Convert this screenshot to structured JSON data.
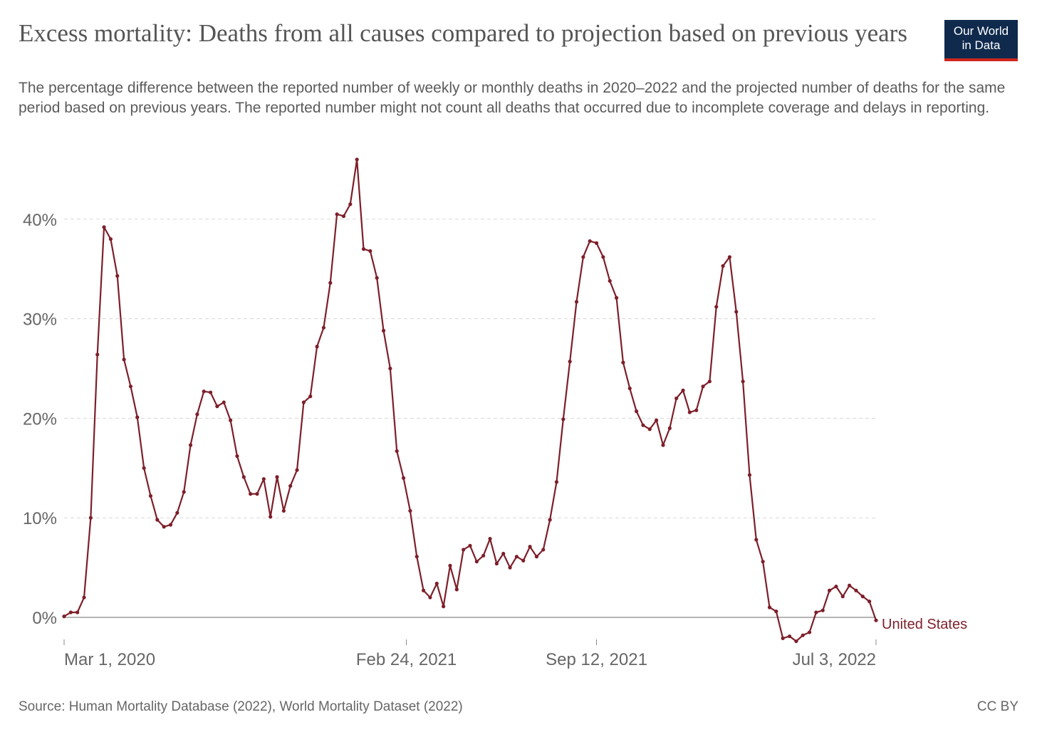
{
  "header": {
    "title": "Excess mortality: Deaths from all causes compared to projection based on previous years",
    "subtitle": "The percentage difference between the reported number of weekly or monthly deaths in 2020–2022 and the projected number of deaths for the same period based on previous years. The reported number might not count all deaths that occurred due to incomplete coverage and delays in reporting.",
    "logo_line1": "Our World",
    "logo_line2": "in Data"
  },
  "footer": {
    "source": "Source: Human Mortality Database (2022), World Mortality Dataset (2022)",
    "license": "CC BY"
  },
  "colors": {
    "series": "#7d1f2a",
    "logo_bg": "#0f2a4d",
    "logo_accent": "#ce261e",
    "grid": "#d8d8d8",
    "axis": "#888888"
  },
  "chart_data": {
    "type": "line",
    "title": "Excess mortality: Deaths from all causes compared to projection based on previous years",
    "xlabel": "",
    "ylabel": "",
    "ylim": [
      -3,
      47
    ],
    "x_ticks": [
      "Mar 1, 2020",
      "Feb 24, 2021",
      "Sep 12, 2021",
      "Jul 3, 2022"
    ],
    "y_ticks": [
      "0%",
      "10%",
      "20%",
      "30%",
      "40%"
    ],
    "y_tick_values": [
      0,
      10,
      20,
      30,
      40
    ],
    "x_start": "2020-03-01",
    "x_end": "2022-07-03",
    "grid": true,
    "series": [
      {
        "name": "United States",
        "values": [
          0.1,
          0.5,
          0.5,
          2.0,
          10.0,
          26.4,
          39.2,
          38.0,
          34.3,
          25.9,
          23.2,
          20.1,
          15.0,
          12.2,
          9.8,
          9.1,
          9.3,
          10.5,
          12.6,
          17.3,
          20.4,
          22.7,
          22.6,
          21.2,
          21.6,
          19.8,
          16.2,
          14.1,
          12.4,
          12.4,
          13.9,
          10.1,
          14.1,
          10.7,
          13.2,
          14.8,
          21.6,
          22.2,
          27.2,
          29.1,
          33.6,
          40.5,
          40.3,
          41.5,
          46.0,
          37.0,
          36.8,
          34.1,
          28.8,
          25.0,
          16.7,
          14.0,
          10.7,
          6.1,
          2.7,
          2.0,
          3.4,
          1.1,
          5.2,
          2.8,
          6.8,
          7.2,
          5.6,
          6.2,
          7.9,
          5.4,
          6.4,
          5.0,
          6.1,
          5.7,
          7.1,
          6.1,
          6.8,
          9.8,
          13.6,
          19.9,
          25.7,
          31.7,
          36.2,
          37.8,
          37.6,
          36.2,
          33.8,
          32.1,
          25.6,
          23.0,
          20.7,
          19.3,
          18.9,
          19.8,
          17.3,
          19.0,
          22.0,
          22.8,
          20.6,
          20.8,
          23.2,
          23.7,
          31.2,
          35.3,
          36.2,
          30.7,
          23.7,
          14.3,
          7.8,
          5.6,
          1.0,
          0.6,
          -2.1,
          -1.9,
          -2.4,
          -1.8,
          -1.5,
          0.5,
          0.7,
          2.7,
          3.1,
          2.1,
          3.2,
          2.7,
          2.1,
          1.6,
          -0.3
        ]
      }
    ]
  }
}
